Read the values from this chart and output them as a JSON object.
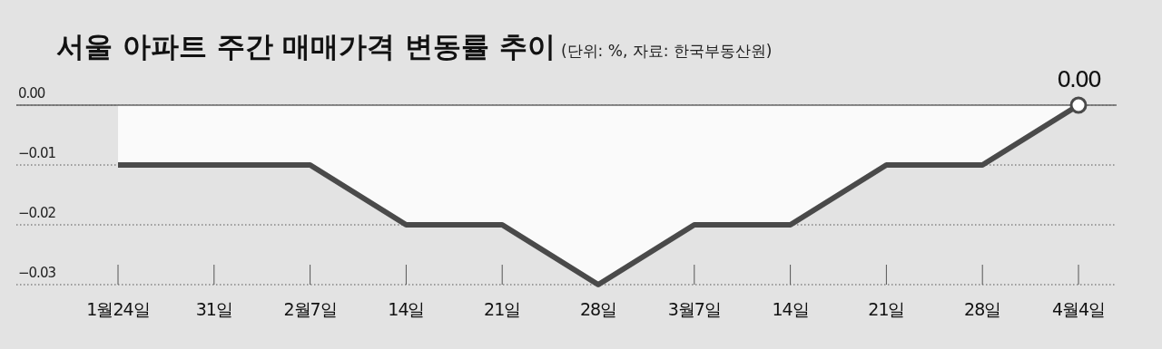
{
  "chart_data": {
    "type": "area",
    "title": "서울 아파트 주간 매매가격 변동률 추이",
    "subtitle": "(단위: %, 자료: 한국부동산원)",
    "categories": [
      "1월24일",
      "31일",
      "2월7일",
      "14일",
      "21일",
      "28일",
      "3월7일",
      "14일",
      "21일",
      "28일",
      "4월4일"
    ],
    "series": [
      {
        "color": "#4a4a4a",
        "values": [
          -0.01,
          -0.01,
          -0.01,
          -0.02,
          -0.02,
          -0.03,
          -0.02,
          -0.02,
          -0.01,
          -0.01,
          0.0
        ],
        "value_labels": [
          null,
          null,
          null,
          null,
          null,
          null,
          null,
          null,
          null,
          null,
          "0.00"
        ]
      }
    ],
    "ylim": [
      -0.03,
      0
    ],
    "yticks": [
      {
        "value": 0,
        "label": "0.00"
      },
      {
        "value": -0.01,
        "label": "−0.01"
      },
      {
        "value": -0.02,
        "label": "−0.02"
      },
      {
        "value": -0.03,
        "label": "−0.03"
      }
    ],
    "grid": "y",
    "ref_lines": [
      {
        "axis": "y",
        "value": 0,
        "color": "#666666",
        "line_style": "solid"
      }
    ]
  }
}
